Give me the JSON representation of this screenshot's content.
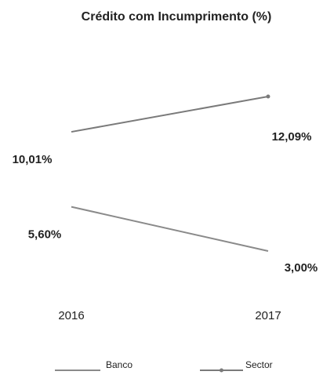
{
  "chart_data": {
    "type": "line",
    "title": "Crédito com Incumprimento (%)",
    "categories": [
      "2016",
      "2017"
    ],
    "series": [
      {
        "name": "Sector",
        "color": "#7a7a7a",
        "values": [
          10.01,
          12.09
        ],
        "value_labels": [
          "10,01%",
          "12,09%"
        ]
      },
      {
        "name": "Banco",
        "color": "#8a8a8a",
        "values": [
          5.6,
          3.0
        ],
        "value_labels": [
          "5,60%",
          "3,00%"
        ]
      }
    ]
  }
}
